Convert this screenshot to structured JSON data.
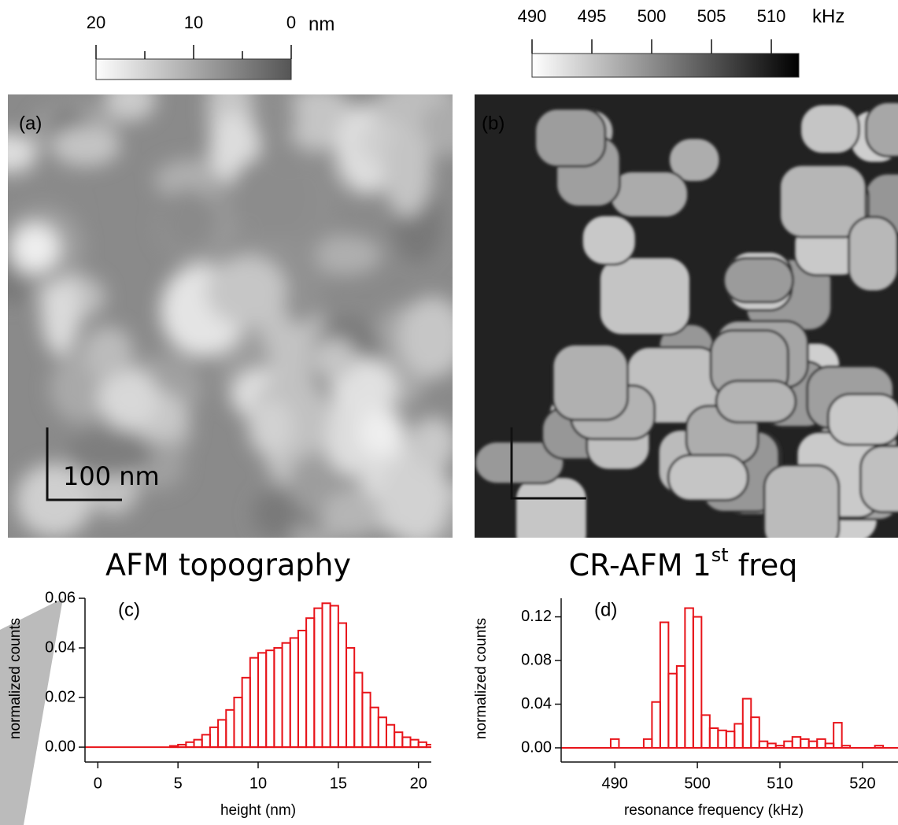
{
  "colorbars": [
    {
      "ticks": [
        20,
        10,
        0
      ],
      "minor_ticks": [
        15,
        5
      ],
      "lim": [
        20,
        0
      ],
      "unit": "nm"
    },
    {
      "ticks": [
        490,
        495,
        500,
        505,
        510
      ],
      "minor_ticks": [],
      "lim": [
        490,
        512.3
      ],
      "unit": "kHz"
    }
  ],
  "images": [
    {
      "label": "(a)",
      "scale_bar": "100 nm",
      "caption": {
        "text": "AFM topography"
      }
    },
    {
      "label": "(b)",
      "caption": {
        "text": "CR-AFM 1",
        "sup": "st",
        "tail": " freq"
      }
    }
  ],
  "chart_data": [
    {
      "type": "histogram",
      "label": "(c)",
      "x_label": "height (nm)",
      "y_label": "normalized counts",
      "color": "#e8141a",
      "bins": [
        0,
        0.5,
        1,
        1.5,
        2,
        2.5,
        3,
        3.5,
        4,
        4.5,
        5,
        5.5,
        6,
        6.5,
        7,
        7.5,
        8,
        8.5,
        9,
        9.5,
        10,
        10.5,
        11,
        11.5,
        12,
        12.5,
        13,
        13.5,
        14,
        14.5,
        15,
        15.5,
        16,
        16.5,
        17,
        17.5,
        18,
        18.5,
        19,
        19.5,
        20,
        20.5,
        21,
        21.5
      ],
      "counts": [
        0,
        0,
        0,
        0,
        0,
        0,
        0,
        0,
        0,
        0.0005,
        0.001,
        0.002,
        0.003,
        0.005,
        0.008,
        0.011,
        0.015,
        0.02,
        0.028,
        0.036,
        0.038,
        0.039,
        0.04,
        0.042,
        0.044,
        0.047,
        0.052,
        0.056,
        0.058,
        0.057,
        0.05,
        0.04,
        0.03,
        0.022,
        0.016,
        0.012,
        0.009,
        0.006,
        0.004,
        0.003,
        0.002,
        0.001,
        0
      ],
      "xlim": [
        -0.8,
        20.8
      ],
      "xticks": [
        0,
        5,
        10,
        15,
        20
      ],
      "ylim": [
        -0.006,
        0.06
      ],
      "yticks": [
        {
          "value": 0,
          "label": "0.00"
        },
        {
          "value": 0.02,
          "label": "0.02"
        },
        {
          "value": 0.04,
          "label": "0.04"
        },
        {
          "value": 0.06,
          "label": "0.06"
        }
      ]
    },
    {
      "type": "histogram",
      "label": "(d)",
      "x_label": "resonance frequency (kHz)",
      "y_label": "normalized counts",
      "color": "#e8141a",
      "bins": [
        483.5,
        484.5,
        485.5,
        486.5,
        487.5,
        488.5,
        489.5,
        490.5,
        491.5,
        492.5,
        493.5,
        494.5,
        495.5,
        496.5,
        497.5,
        498.5,
        499.5,
        500.5,
        501.5,
        502.5,
        503.5,
        504.5,
        505.5,
        506.5,
        507.5,
        508.5,
        509.5,
        510.5,
        511.5,
        512.5,
        513.5,
        514.5,
        515.5,
        516.5,
        517.5,
        518.5,
        519.5,
        520.5,
        521.5,
        522.5,
        523.5
      ],
      "counts": [
        0,
        0,
        0,
        0,
        0,
        0,
        0.008,
        0,
        0,
        0,
        0.008,
        0.042,
        0.115,
        0.068,
        0.075,
        0.128,
        0.12,
        0.03,
        0.018,
        0.016,
        0.015,
        0.022,
        0.045,
        0.028,
        0.006,
        0.004,
        0.002,
        0.006,
        0.01,
        0.008,
        0.006,
        0.008,
        0.004,
        0.023,
        0.002,
        0,
        0,
        0,
        0.002,
        0
      ],
      "xlim": [
        483.5,
        524.3
      ],
      "xticks": [
        490,
        500,
        510,
        520
      ],
      "ylim": [
        -0.013,
        0.137
      ],
      "yticks": [
        {
          "value": 0,
          "label": "0.00"
        },
        {
          "value": 0.04,
          "label": "0.04"
        },
        {
          "value": 0.08,
          "label": "0.08"
        },
        {
          "value": 0.12,
          "label": "0.12"
        }
      ]
    }
  ]
}
